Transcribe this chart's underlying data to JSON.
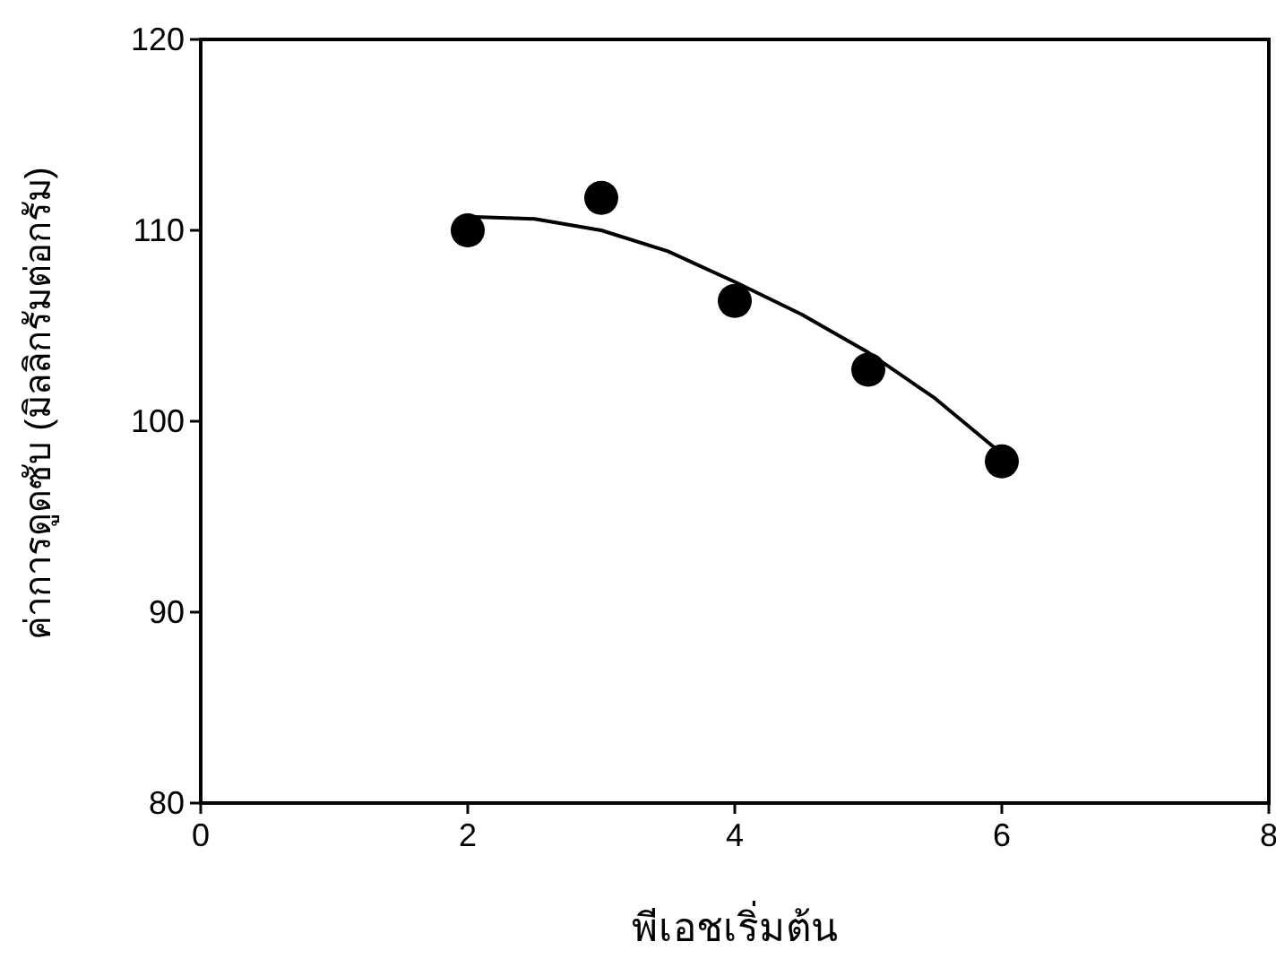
{
  "chart_data": {
    "type": "scatter",
    "xlabel": "พีเอชเริ่มต้น",
    "ylabel": "ค่าการดูดซับ (มิลลิกรัมต่อกรัม)",
    "xlim": [
      0,
      8
    ],
    "xticks": [
      0,
      2,
      4,
      6,
      8
    ],
    "ylim": [
      80,
      120
    ],
    "yticks": [
      80,
      90,
      100,
      110,
      120
    ],
    "grid": false,
    "series": [
      {
        "color": "#000000",
        "marker": "circle",
        "x": [
          2,
          3,
          4,
          5,
          6
        ],
        "values": [
          110.0,
          111.7,
          106.3,
          102.7,
          97.9
        ]
      },
      {
        "type": "line",
        "color": "#000000",
        "line_style": "solid",
        "x": [
          2.05,
          2.5,
          3,
          3.5,
          4,
          4.5,
          5,
          5.5,
          6
        ],
        "values": [
          110.7,
          110.6,
          110.0,
          108.9,
          107.3,
          105.6,
          103.6,
          101.2,
          98.3
        ]
      }
    ]
  }
}
